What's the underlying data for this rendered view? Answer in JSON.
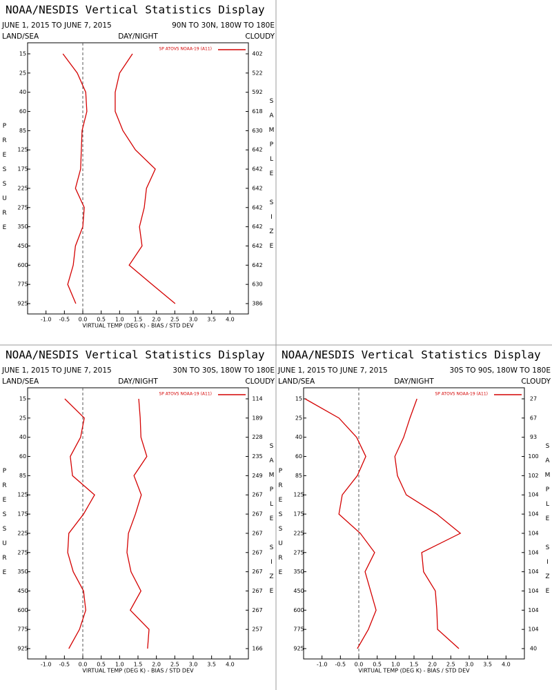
{
  "chart_data": [
    {
      "type": "line",
      "title": "NOAA/NESDIS Vertical Statistics Display",
      "date_range": "JUNE 1, 2015 TO JUNE 7, 2015",
      "region": "90N TO 30N, 180W TO 180E",
      "land_sea": "LAND/SEA",
      "day_night": "DAY/NIGHT",
      "cloudy": "CLOUDY",
      "y_label": "PRESSURE",
      "y2_label": "SAMPLE SIZE",
      "x_label": "VIRTUAL TEMP (DEG K) - BIAS / STD DEV",
      "categories": [
        "15",
        "25",
        "40",
        "60",
        "85",
        "125",
        "175",
        "225",
        "275",
        "350",
        "450",
        "600",
        "775",
        "925"
      ],
      "sample_size": [
        402,
        522,
        592,
        618,
        630,
        642,
        642,
        642,
        642,
        642,
        642,
        642,
        630,
        386
      ],
      "series": [
        {
          "name": "SP ATOVS NOAA-19 (A11)",
          "color": "#d40000",
          "values": [
            -0.54,
            -0.15,
            0.08,
            0.11,
            -0.02,
            -0.04,
            -0.06,
            -0.2,
            0.04,
            0.0,
            -0.2,
            -0.26,
            -0.41,
            -0.19
          ]
        },
        {
          "color": "#d40000",
          "values": [
            1.35,
            1.0,
            0.88,
            0.88,
            1.09,
            1.43,
            1.97,
            1.73,
            1.67,
            1.54,
            1.61,
            1.26,
            1.88,
            2.51
          ]
        }
      ],
      "xlim": [
        -1.5,
        4.5
      ],
      "xticks": [
        {
          "value": -1,
          "label": "-1.0"
        },
        {
          "value": -0.5,
          "label": "-0.5"
        },
        {
          "value": 0,
          "label": "0.0"
        },
        {
          "value": 0.5,
          "label": "0.5"
        },
        {
          "value": 1,
          "label": "1.0"
        },
        {
          "value": 1.5,
          "label": "1.5"
        },
        {
          "value": 2,
          "label": "2.0"
        },
        {
          "value": 2.5,
          "label": "2.5"
        },
        {
          "value": 3,
          "label": "3.0"
        },
        {
          "value": 3.5,
          "label": "3.5"
        },
        {
          "value": 4,
          "label": "4.0"
        }
      ]
    },
    {
      "type": "line",
      "title": "NOAA/NESDIS Vertical Statistics Display",
      "date_range": "JUNE 1, 2015 TO JUNE 7, 2015",
      "region": "30N TO 30S, 180W TO 180E",
      "land_sea": "LAND/SEA",
      "day_night": "DAY/NIGHT",
      "cloudy": "CLOUDY",
      "y_label": "PRESSURE",
      "y2_label": "SAMPLE SIZE",
      "x_label": "VIRTUAL TEMP (DEG K) - BIAS / STD DEV",
      "categories": [
        "15",
        "25",
        "40",
        "60",
        "85",
        "125",
        "175",
        "225",
        "275",
        "350",
        "450",
        "600",
        "775",
        "925"
      ],
      "sample_size": [
        114,
        189,
        228,
        235,
        249,
        267,
        267,
        267,
        267,
        267,
        267,
        267,
        257,
        166
      ],
      "series": [
        {
          "name": "SP ATOVS NOAA-19 (A11)",
          "color": "#d40000",
          "values": [
            -0.49,
            0.04,
            -0.06,
            -0.34,
            -0.28,
            0.32,
            0.02,
            -0.38,
            -0.41,
            -0.26,
            0.02,
            0.08,
            -0.09,
            -0.38
          ]
        },
        {
          "color": "#d40000",
          "values": [
            1.52,
            1.56,
            1.58,
            1.74,
            1.39,
            1.59,
            1.43,
            1.24,
            1.2,
            1.31,
            1.58,
            1.29,
            1.8,
            1.76
          ]
        }
      ],
      "xlim": [
        -1.5,
        4.5
      ],
      "xticks": [
        {
          "value": -1,
          "label": "-1.0"
        },
        {
          "value": -0.5,
          "label": "-0.5"
        },
        {
          "value": 0,
          "label": "0.0"
        },
        {
          "value": 0.5,
          "label": "0.5"
        },
        {
          "value": 1,
          "label": "1.0"
        },
        {
          "value": 1.5,
          "label": "1.5"
        },
        {
          "value": 2,
          "label": "2.0"
        },
        {
          "value": 2.5,
          "label": "2.5"
        },
        {
          "value": 3,
          "label": "3.0"
        },
        {
          "value": 3.5,
          "label": "3.5"
        },
        {
          "value": 4,
          "label": "4.0"
        }
      ]
    },
    {
      "type": "line",
      "title": "NOAA/NESDIS Vertical Statistics Display",
      "date_range": "JUNE 1, 2015 TO JUNE 7, 2015",
      "region": "30S TO 90S, 180W TO 180E",
      "land_sea": "LAND/SEA",
      "day_night": "DAY/NIGHT",
      "cloudy": "CLOUDY",
      "y_label": "PRESSURE",
      "y2_label": "SAMPLE SIZE",
      "x_label": "VIRTUAL TEMP (DEG K) - BIAS / STD DEV",
      "categories": [
        "15",
        "25",
        "40",
        "60",
        "85",
        "125",
        "175",
        "225",
        "275",
        "350",
        "450",
        "600",
        "775",
        "925"
      ],
      "sample_size": [
        27,
        67,
        93,
        100,
        102,
        104,
        104,
        104,
        104,
        104,
        104,
        104,
        104,
        40
      ],
      "series": [
        {
          "name": "SP ATOVS NOAA-19 (A11)",
          "color": "#d40000",
          "values": [
            -1.46,
            -0.54,
            -0.06,
            0.19,
            -0.04,
            -0.45,
            -0.54,
            0.04,
            0.43,
            0.17,
            0.32,
            0.47,
            0.26,
            -0.04
          ]
        },
        {
          "color": "#d40000",
          "values": [
            1.58,
            1.39,
            1.22,
            0.98,
            1.05,
            1.29,
            2.12,
            2.76,
            1.71,
            1.76,
            2.08,
            2.12,
            2.14,
            2.72
          ]
        }
      ],
      "xlim": [
        -1.5,
        4.5
      ],
      "xticks": [
        {
          "value": -1,
          "label": "-1.0"
        },
        {
          "value": -0.5,
          "label": "-0.5"
        },
        {
          "value": 0,
          "label": "0.0"
        },
        {
          "value": 0.5,
          "label": "0.5"
        },
        {
          "value": 1,
          "label": "1.0"
        },
        {
          "value": 1.5,
          "label": "1.5"
        },
        {
          "value": 2,
          "label": "2.0"
        },
        {
          "value": 2.5,
          "label": "2.5"
        },
        {
          "value": 3,
          "label": "3.0"
        },
        {
          "value": 3.5,
          "label": "3.5"
        },
        {
          "value": 4,
          "label": "4.0"
        }
      ]
    }
  ]
}
